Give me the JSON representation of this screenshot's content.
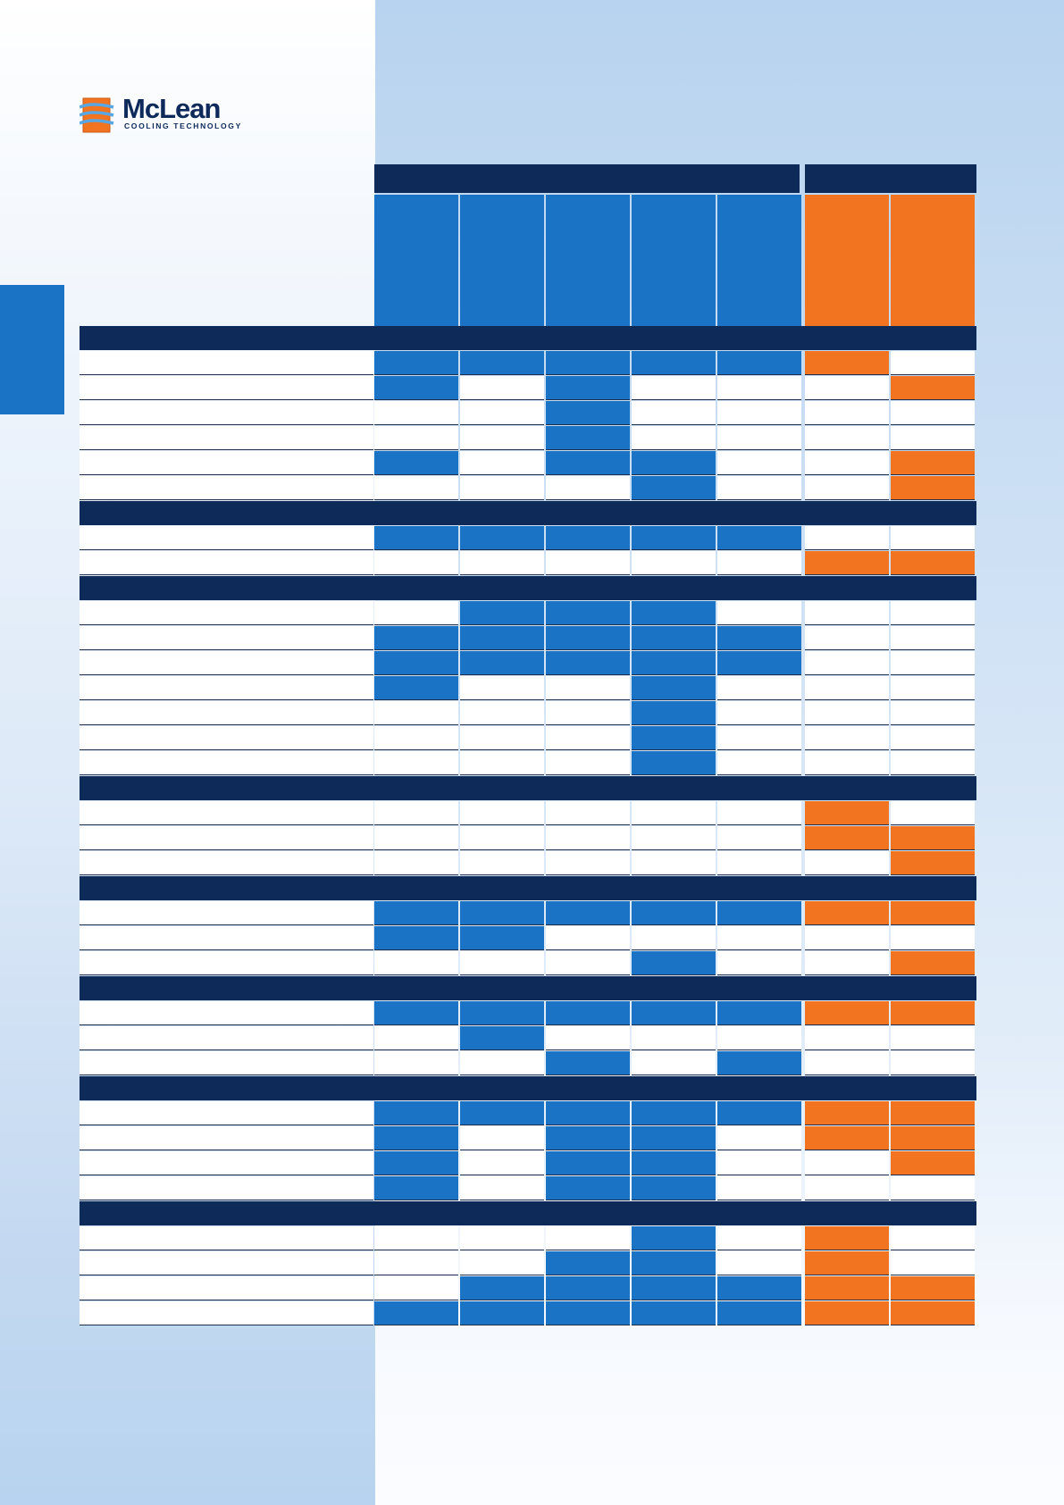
{
  "logo": {
    "brand": "McLean",
    "tagline": "COOLING TECHNOLOGY"
  },
  "colors": {
    "navy": "#0d2a58",
    "blue": "#1a73c5",
    "orange": "#f37420",
    "white": "#ffffff"
  },
  "matrix": {
    "groups": [
      {
        "columns": 5,
        "color": "blue"
      },
      {
        "columns": 2,
        "color": "orange"
      }
    ],
    "sections": [
      {
        "rows": [
          "BBBBBO-",
          "B-B---O",
          "--B----",
          "--B----",
          "B-BB--O",
          "---B--O"
        ]
      },
      {
        "rows": [
          "BBBBB--",
          "-----OO"
        ]
      },
      {
        "rows": [
          "-BBB---",
          "BBBBB--",
          "BBBBB--",
          "B--B---",
          "---B---",
          "---B---",
          "---B---"
        ]
      },
      {
        "rows": [
          "-----O-",
          "-----OO",
          "------O"
        ]
      },
      {
        "rows": [
          "BBBBBOO",
          "BB-----",
          "---B--O"
        ]
      },
      {
        "rows": [
          "BBBBBOO",
          "-B-----",
          "--B-B--"
        ]
      },
      {
        "rows": [
          "BBBBBOO",
          "B-BB-OO",
          "B-BB--O",
          "B-BB---"
        ]
      },
      {
        "rows": [
          "---B-O-",
          "--BB-O-",
          "-BBBBOO",
          "BBBBBOO"
        ]
      }
    ]
  }
}
